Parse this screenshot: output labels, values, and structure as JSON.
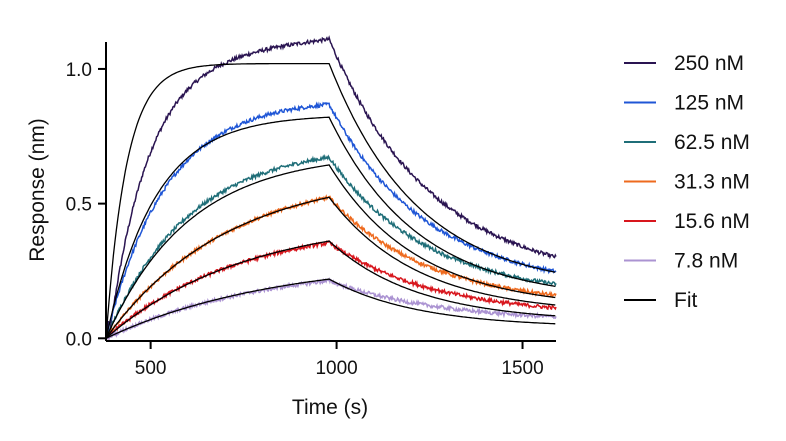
{
  "chart_data": {
    "type": "line",
    "title": "",
    "xlabel": "Time (s)",
    "ylabel": "Response (nm)",
    "xlim": [
      380,
      1590
    ],
    "ylim": [
      -0.01,
      1.1
    ],
    "x_ticks": [
      500,
      1000,
      1500
    ],
    "x_tick_labels": [
      "500",
      "1000",
      "1500"
    ],
    "y_ticks": [
      0.0,
      0.5,
      1.0
    ],
    "y_tick_labels": [
      "0.0",
      "0.5",
      "1.0"
    ],
    "grid": false,
    "legend_position": "right",
    "association_start": 380,
    "dissociation_start": 980,
    "end_time": 1590,
    "series": [
      {
        "name": "250 nM",
        "color": "#2a1451",
        "assoc_plateau": 1.11,
        "assoc_rate": 0.0095,
        "drift": 0.00014,
        "dissoc_floor": 0.2,
        "dissoc_rate": 0.0036,
        "end_value": 0.3
      },
      {
        "name": "125 nM",
        "color": "#1f56d6",
        "assoc_plateau": 0.89,
        "assoc_rate": 0.0062,
        "drift": 0.0,
        "dissoc_floor": 0.18,
        "dissoc_rate": 0.0038,
        "end_value": 0.26
      },
      {
        "name": "62.5 nM",
        "color": "#1f6e78",
        "assoc_plateau": 0.72,
        "assoc_rate": 0.0045,
        "drift": 0.0,
        "dissoc_floor": 0.15,
        "dissoc_rate": 0.0038,
        "end_value": 0.21
      },
      {
        "name": "31.3 nM",
        "color": "#ee6a1e",
        "assoc_plateau": 0.62,
        "assoc_rate": 0.0031,
        "drift": 0.0,
        "dissoc_floor": 0.12,
        "dissoc_rate": 0.0038,
        "end_value": 0.17
      },
      {
        "name": "15.6 nM",
        "color": "#d8161d",
        "assoc_plateau": 0.43,
        "assoc_rate": 0.0029,
        "drift": 0.0,
        "dissoc_floor": 0.08,
        "dissoc_rate": 0.0035,
        "end_value": 0.12
      },
      {
        "name": "7.8 nM",
        "color": "#ab93d2",
        "assoc_plateau": 0.28,
        "assoc_rate": 0.0024,
        "drift": 0.0,
        "dissoc_floor": 0.06,
        "dissoc_rate": 0.0034,
        "end_value": 0.08
      }
    ],
    "fit": {
      "name": "Fit",
      "color": "#000000",
      "curves": [
        {
          "assoc_plateau": 1.02,
          "assoc_rate": 0.018,
          "dissoc_floor": 0.18,
          "dissoc_rate": 0.0042
        },
        {
          "assoc_plateau": 0.83,
          "assoc_rate": 0.0075,
          "dissoc_floor": 0.14,
          "dissoc_rate": 0.0042
        },
        {
          "assoc_plateau": 0.69,
          "assoc_rate": 0.0045,
          "dissoc_floor": 0.11,
          "dissoc_rate": 0.0042
        },
        {
          "assoc_plateau": 0.62,
          "assoc_rate": 0.0031,
          "dissoc_floor": 0.09,
          "dissoc_rate": 0.0042
        },
        {
          "assoc_plateau": 0.45,
          "assoc_rate": 0.0027,
          "dissoc_floor": 0.06,
          "dissoc_rate": 0.0042
        },
        {
          "assoc_plateau": 0.3,
          "assoc_rate": 0.0022,
          "dissoc_floor": 0.04,
          "dissoc_rate": 0.0042
        }
      ]
    }
  }
}
